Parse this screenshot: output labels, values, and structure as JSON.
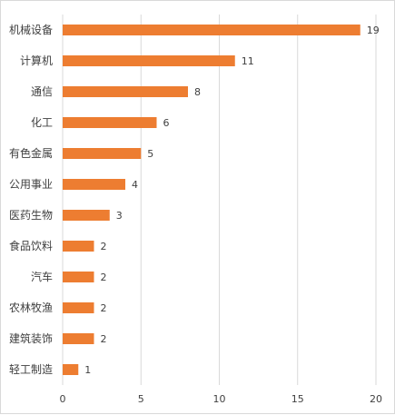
{
  "chart_data": {
    "type": "bar",
    "orientation": "horizontal",
    "categories": [
      "机械设备",
      "计算机",
      "通信",
      "化工",
      "有色金属",
      "公用事业",
      "医药生物",
      "食品饮料",
      "汽车",
      "农林牧渔",
      "建筑装饰",
      "轻工制造"
    ],
    "values": [
      19,
      11,
      8,
      6,
      5,
      4,
      3,
      2,
      2,
      2,
      2,
      1
    ],
    "xlim": [
      0,
      20
    ],
    "xticks": [
      0,
      5,
      10,
      15,
      20
    ],
    "grid": true,
    "bar_color": "#ED7D31",
    "grid_color": "#d9d9d9",
    "data_labels": true
  }
}
